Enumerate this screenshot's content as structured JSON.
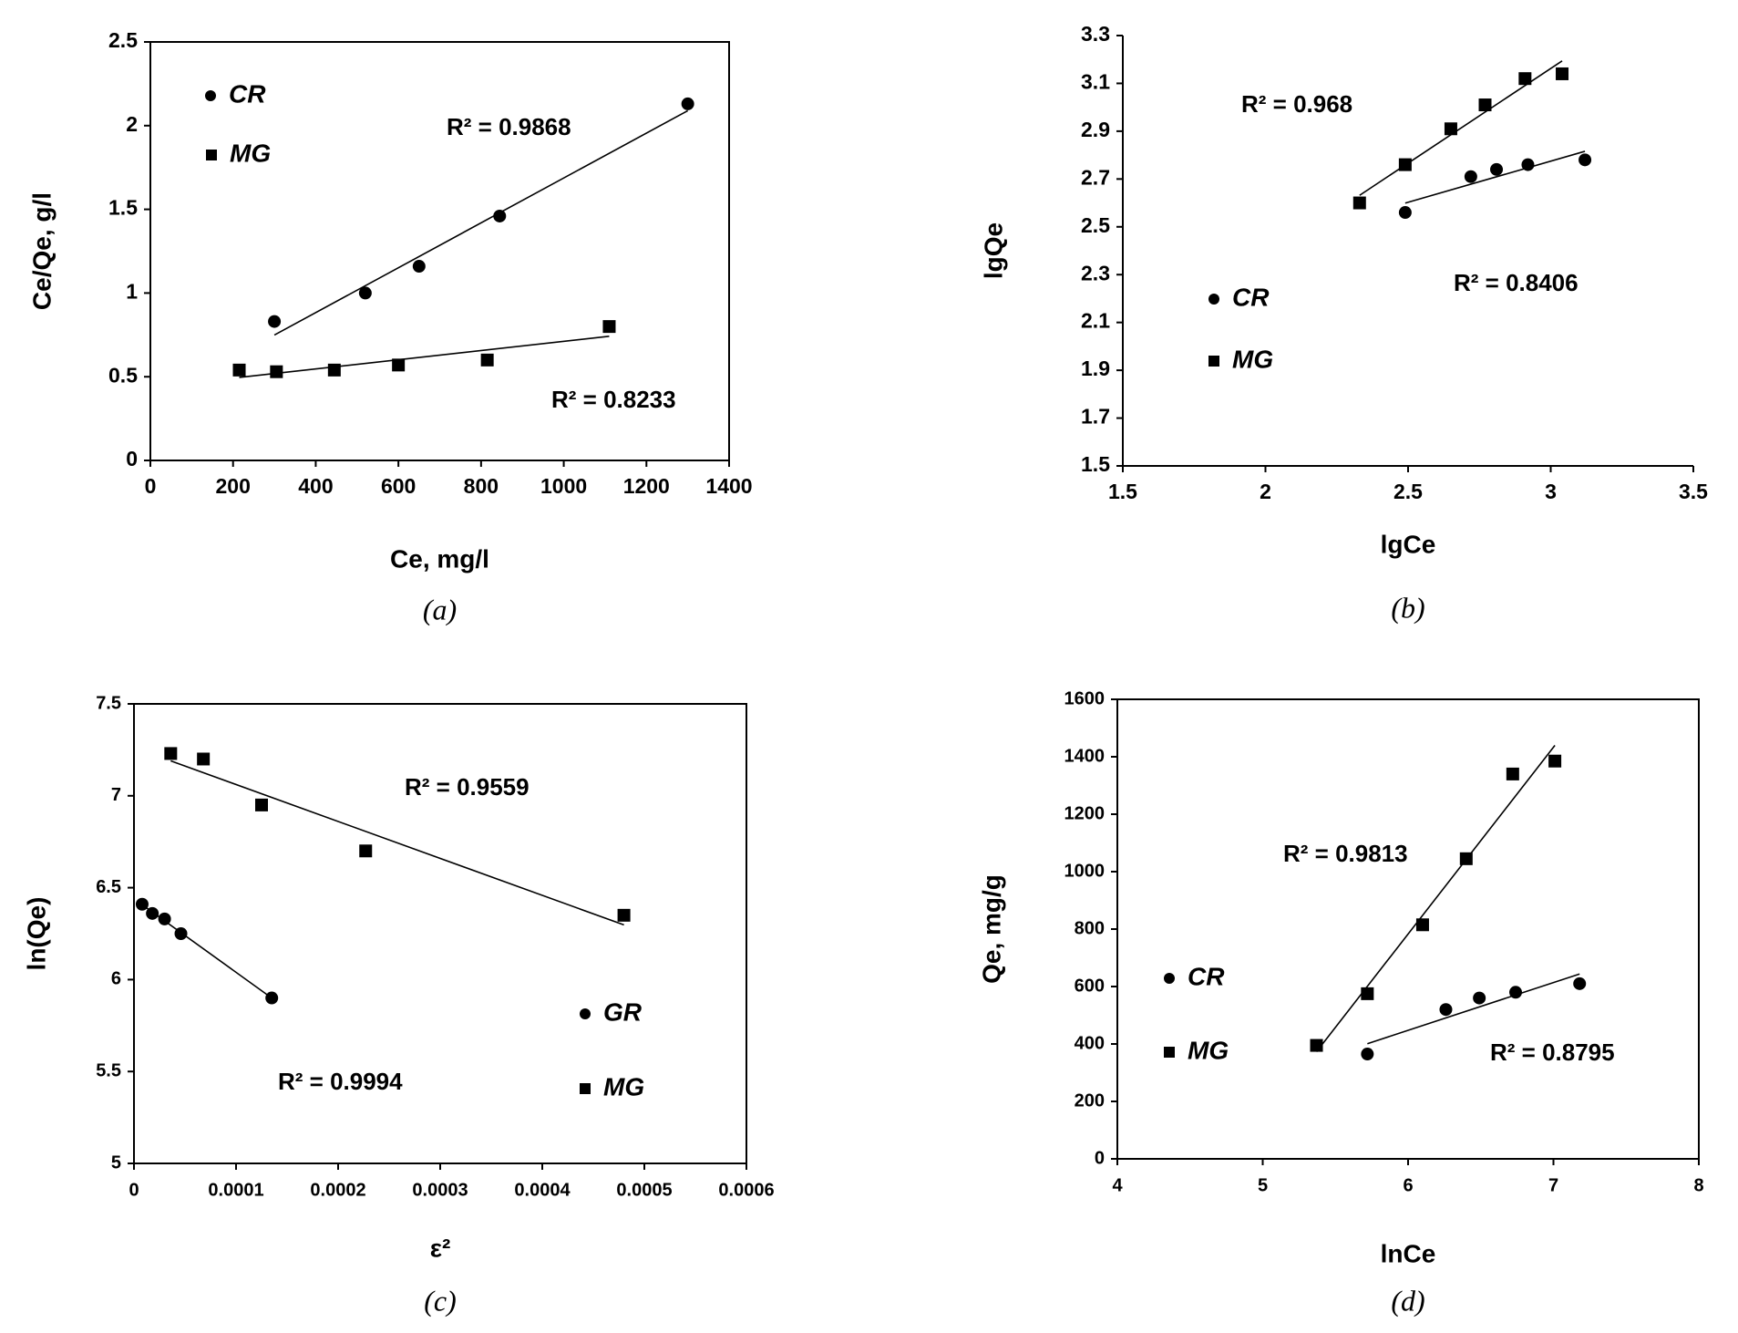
{
  "chart_data": [
    {
      "type": "scatter",
      "caption": "(a)",
      "x_label": "Ce, mg/l",
      "y_label": "Ce/Qe, g/l",
      "xlim": [
        0,
        1400
      ],
      "xticks": [
        0,
        200,
        400,
        600,
        800,
        1000,
        1200,
        1400
      ],
      "ylim": [
        0,
        2.5
      ],
      "yticks": [
        0,
        0.5,
        1,
        1.5,
        2,
        2.5
      ],
      "trendline": true,
      "annotations": [
        "R² = 0.9868",
        "R² = 0.8233"
      ],
      "series": [
        {
          "name": "CR",
          "marker": "circle",
          "color": "#000000",
          "x": [
            300,
            520,
            650,
            845,
            1300
          ],
          "values": [
            0.83,
            1.0,
            1.16,
            1.46,
            2.13
          ]
        },
        {
          "name": "MG",
          "marker": "square",
          "color": "#000000",
          "x": [
            215,
            305,
            445,
            600,
            815,
            1110
          ],
          "values": [
            0.54,
            0.53,
            0.54,
            0.57,
            0.6,
            0.8
          ]
        }
      ]
    },
    {
      "type": "scatter",
      "caption": "(b)",
      "x_label": "lgCe",
      "y_label": "lgQe",
      "xlim": [
        1.5,
        3.5
      ],
      "xticks": [
        1.5,
        2,
        2.5,
        3,
        3.5
      ],
      "ylim": [
        1.5,
        3.3
      ],
      "yticks": [
        1.5,
        1.7,
        1.9,
        2.1,
        2.3,
        2.5,
        2.7,
        2.9,
        3.1,
        3.3
      ],
      "trendline": true,
      "annotations": [
        "R² = 0.968",
        "R² = 0.8406"
      ],
      "series": [
        {
          "name": "CR",
          "marker": "circle",
          "color": "#000000",
          "x": [
            2.49,
            2.72,
            2.81,
            2.92,
            3.12
          ],
          "values": [
            2.56,
            2.71,
            2.74,
            2.76,
            2.78
          ]
        },
        {
          "name": "MG",
          "marker": "square",
          "color": "#000000",
          "x": [
            2.33,
            2.49,
            2.65,
            2.77,
            2.91,
            3.04
          ],
          "values": [
            2.6,
            2.76,
            2.91,
            3.01,
            3.12,
            3.14
          ]
        }
      ]
    },
    {
      "type": "scatter",
      "caption": "(c)",
      "x_label": "ε²",
      "y_label": "ln(Qe)",
      "xlim": [
        0,
        0.0006
      ],
      "xticks": [
        0,
        0.0001,
        0.0002,
        0.0003,
        0.0004,
        0.0005,
        0.0006
      ],
      "ylim": [
        5,
        7.5
      ],
      "yticks": [
        5,
        5.5,
        6,
        6.5,
        7,
        7.5
      ],
      "trendline": true,
      "annotations": [
        "R² = 0.9559",
        "R² = 0.9994"
      ],
      "series": [
        {
          "name": "GR",
          "marker": "circle",
          "color": "#000000",
          "x": [
            8e-06,
            1.8e-05,
            3e-05,
            4.6e-05,
            0.000135
          ],
          "values": [
            6.41,
            6.36,
            6.33,
            6.25,
            5.9
          ]
        },
        {
          "name": "MG",
          "marker": "square",
          "color": "#000000",
          "x": [
            3.6e-05,
            6.8e-05,
            0.000125,
            0.000227,
            0.00048
          ],
          "values": [
            7.23,
            7.2,
            6.95,
            6.7,
            6.35
          ]
        }
      ]
    },
    {
      "type": "scatter",
      "caption": "(d)",
      "x_label": "lnCe",
      "y_label": "Qe, mg/g",
      "xlim": [
        4,
        8
      ],
      "xticks": [
        4,
        5,
        6,
        7,
        8
      ],
      "ylim": [
        0,
        1600
      ],
      "yticks": [
        0,
        200,
        400,
        600,
        800,
        1000,
        1200,
        1400,
        1600
      ],
      "trendline": true,
      "annotations": [
        "R² = 0.9813",
        "R² = 0.8795"
      ],
      "series": [
        {
          "name": "CR",
          "marker": "circle",
          "color": "#000000",
          "x": [
            5.72,
            6.26,
            6.49,
            6.74,
            7.18
          ],
          "values": [
            365,
            520,
            560,
            580,
            610
          ]
        },
        {
          "name": "MG",
          "marker": "square",
          "color": "#000000",
          "x": [
            5.37,
            5.72,
            6.1,
            6.4,
            6.72,
            7.01
          ],
          "values": [
            395,
            575,
            815,
            1045,
            1340,
            1385
          ]
        }
      ]
    }
  ]
}
